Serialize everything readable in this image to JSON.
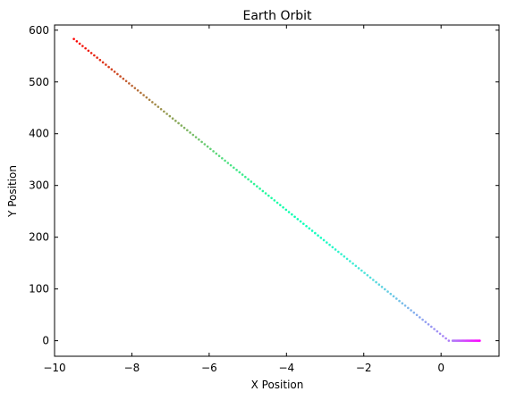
{
  "chart_data": {
    "type": "scatter",
    "title": "Earth Orbit",
    "xlabel": "X Position",
    "ylabel": "Y Position",
    "xlim": [
      -10,
      1.5
    ],
    "ylim": [
      -30,
      610
    ],
    "xticks": [
      -10,
      -8,
      -6,
      -4,
      -2,
      0
    ],
    "yticks": [
      0,
      100,
      200,
      300,
      400,
      500,
      600
    ],
    "grid": false,
    "colormap": "rainbow",
    "series": [
      {
        "segments": [
          {
            "from": [
              1.0,
              0.0
            ],
            "to": [
              0.3,
              0.0
            ],
            "points": 25
          },
          {
            "from": [
              0.2,
              0.0
            ],
            "to": [
              -9.5,
              583.0
            ],
            "points": 130
          }
        ]
      }
    ]
  }
}
